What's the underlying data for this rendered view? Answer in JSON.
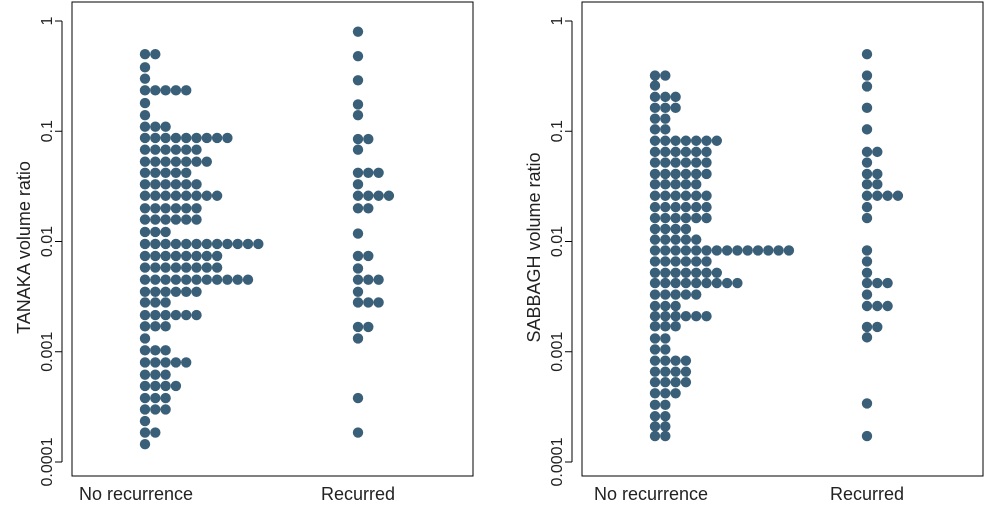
{
  "chart_data": [
    {
      "type": "scatter",
      "ylabel": "TANAKA volume ratio",
      "yscale": "log",
      "ylim": [
        0.0001,
        1
      ],
      "yticks": [
        1,
        0.1,
        0.01,
        0.001,
        0.0001
      ],
      "ytick_labels": [
        "1",
        "0.1",
        "0.01",
        "0.001",
        "0.0001"
      ],
      "categories": [
        "No recurrence",
        "Recurred"
      ],
      "series": [
        {
          "category": "No recurrence",
          "bins": [
            {
              "y": 0.5,
              "count": 2
            },
            {
              "y": 0.38,
              "count": 1
            },
            {
              "y": 0.3,
              "count": 1
            },
            {
              "y": 0.235,
              "count": 5
            },
            {
              "y": 0.18,
              "count": 1
            },
            {
              "y": 0.14,
              "count": 1
            },
            {
              "y": 0.11,
              "count": 3
            },
            {
              "y": 0.087,
              "count": 9
            },
            {
              "y": 0.068,
              "count": 6
            },
            {
              "y": 0.053,
              "count": 7
            },
            {
              "y": 0.042,
              "count": 5
            },
            {
              "y": 0.033,
              "count": 6
            },
            {
              "y": 0.026,
              "count": 8
            },
            {
              "y": 0.02,
              "count": 6
            },
            {
              "y": 0.0158,
              "count": 6
            },
            {
              "y": 0.0122,
              "count": 3
            },
            {
              "y": 0.0095,
              "count": 12
            },
            {
              "y": 0.0074,
              "count": 8
            },
            {
              "y": 0.0058,
              "count": 8
            },
            {
              "y": 0.0045,
              "count": 11
            },
            {
              "y": 0.0035,
              "count": 6
            },
            {
              "y": 0.0028,
              "count": 3
            },
            {
              "y": 0.00215,
              "count": 6
            },
            {
              "y": 0.0017,
              "count": 3
            },
            {
              "y": 0.00132,
              "count": 1
            },
            {
              "y": 0.00103,
              "count": 3
            },
            {
              "y": 0.0008,
              "count": 5
            },
            {
              "y": 0.00062,
              "count": 3
            },
            {
              "y": 0.00049,
              "count": 4
            },
            {
              "y": 0.00038,
              "count": 3
            },
            {
              "y": 0.0003,
              "count": 3
            },
            {
              "y": 0.000235,
              "count": 1
            },
            {
              "y": 0.000185,
              "count": 2
            },
            {
              "y": 0.000145,
              "count": 1
            }
          ]
        },
        {
          "category": "Recurred",
          "bins": [
            {
              "y": 0.8,
              "count": 1
            },
            {
              "y": 0.48,
              "count": 1
            },
            {
              "y": 0.29,
              "count": 1
            },
            {
              "y": 0.175,
              "count": 1
            },
            {
              "y": 0.14,
              "count": 1
            },
            {
              "y": 0.085,
              "count": 2
            },
            {
              "y": 0.068,
              "count": 1
            },
            {
              "y": 0.042,
              "count": 3
            },
            {
              "y": 0.033,
              "count": 1
            },
            {
              "y": 0.026,
              "count": 4
            },
            {
              "y": 0.02,
              "count": 2
            },
            {
              "y": 0.0118,
              "count": 1
            },
            {
              "y": 0.0074,
              "count": 2
            },
            {
              "y": 0.0057,
              "count": 1
            },
            {
              "y": 0.0045,
              "count": 3
            },
            {
              "y": 0.0035,
              "count": 1
            },
            {
              "y": 0.0028,
              "count": 3
            },
            {
              "y": 0.00168,
              "count": 2
            },
            {
              "y": 0.00132,
              "count": 1
            },
            {
              "y": 0.00038,
              "count": 1
            },
            {
              "y": 0.000185,
              "count": 1
            }
          ]
        }
      ]
    },
    {
      "type": "scatter",
      "ylabel": "SABBAGH volume ratio",
      "yscale": "log",
      "ylim": [
        0.0001,
        1
      ],
      "yticks": [
        1,
        0.1,
        0.01,
        0.001,
        0.0001
      ],
      "ytick_labels": [
        "1",
        "0.1",
        "0.01",
        "0.001",
        "0.0001"
      ],
      "categories": [
        "No recurrence",
        "Recurred"
      ],
      "series": [
        {
          "category": "No recurrence",
          "bins": [
            {
              "y": 0.32,
              "count": 2
            },
            {
              "y": 0.26,
              "count": 1
            },
            {
              "y": 0.205,
              "count": 3
            },
            {
              "y": 0.163,
              "count": 3
            },
            {
              "y": 0.13,
              "count": 2
            },
            {
              "y": 0.104,
              "count": 2
            },
            {
              "y": 0.082,
              "count": 7
            },
            {
              "y": 0.065,
              "count": 6
            },
            {
              "y": 0.052,
              "count": 6
            },
            {
              "y": 0.041,
              "count": 6
            },
            {
              "y": 0.033,
              "count": 5
            },
            {
              "y": 0.026,
              "count": 6
            },
            {
              "y": 0.0205,
              "count": 6
            },
            {
              "y": 0.0163,
              "count": 6
            },
            {
              "y": 0.013,
              "count": 4
            },
            {
              "y": 0.0104,
              "count": 5
            },
            {
              "y": 0.0083,
              "count": 14
            },
            {
              "y": 0.0066,
              "count": 6
            },
            {
              "y": 0.0052,
              "count": 7
            },
            {
              "y": 0.0042,
              "count": 9
            },
            {
              "y": 0.0033,
              "count": 5
            },
            {
              "y": 0.0026,
              "count": 3
            },
            {
              "y": 0.0021,
              "count": 6
            },
            {
              "y": 0.0017,
              "count": 3
            },
            {
              "y": 0.00132,
              "count": 2
            },
            {
              "y": 0.00105,
              "count": 2
            },
            {
              "y": 0.00083,
              "count": 4
            },
            {
              "y": 0.00066,
              "count": 4
            },
            {
              "y": 0.00053,
              "count": 4
            },
            {
              "y": 0.00042,
              "count": 3
            },
            {
              "y": 0.00033,
              "count": 2
            },
            {
              "y": 0.00026,
              "count": 2
            },
            {
              "y": 0.00021,
              "count": 2
            },
            {
              "y": 0.000172,
              "count": 2
            }
          ]
        },
        {
          "category": "Recurred",
          "bins": [
            {
              "y": 0.5,
              "count": 1
            },
            {
              "y": 0.32,
              "count": 1
            },
            {
              "y": 0.255,
              "count": 1
            },
            {
              "y": 0.163,
              "count": 1
            },
            {
              "y": 0.104,
              "count": 1
            },
            {
              "y": 0.065,
              "count": 2
            },
            {
              "y": 0.052,
              "count": 1
            },
            {
              "y": 0.041,
              "count": 2
            },
            {
              "y": 0.033,
              "count": 2
            },
            {
              "y": 0.026,
              "count": 4
            },
            {
              "y": 0.0205,
              "count": 1
            },
            {
              "y": 0.0163,
              "count": 1
            },
            {
              "y": 0.0083,
              "count": 1
            },
            {
              "y": 0.0066,
              "count": 1
            },
            {
              "y": 0.0052,
              "count": 1
            },
            {
              "y": 0.0042,
              "count": 3
            },
            {
              "y": 0.0033,
              "count": 1
            },
            {
              "y": 0.0026,
              "count": 3
            },
            {
              "y": 0.00168,
              "count": 2
            },
            {
              "y": 0.00135,
              "count": 1
            },
            {
              "y": 0.00034,
              "count": 1
            },
            {
              "y": 0.000172,
              "count": 1
            }
          ]
        }
      ]
    }
  ],
  "colors": {
    "marker": "#3a5f78",
    "axis": "#000000",
    "text": "#222222"
  }
}
